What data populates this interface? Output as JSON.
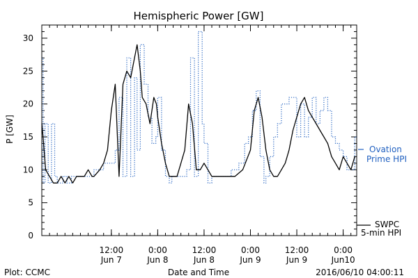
{
  "chart_data": {
    "type": "line",
    "title": "Hemispheric Power [GW]",
    "ylabel": "P [GW]",
    "xlabel": "Date and Time",
    "ylim": [
      0,
      32
    ],
    "yticks": [
      0,
      5,
      10,
      15,
      20,
      25,
      30
    ],
    "xlim": [
      "2016-06-06 18:00",
      "2016-06-10 03:30"
    ],
    "xticks": [
      {
        "t": "2016-06-07 12:00",
        "line1": "12:00",
        "line2": "Jun 7"
      },
      {
        "t": "2016-06-08 00:00",
        "line1": "0:00",
        "line2": "Jun 8"
      },
      {
        "t": "2016-06-08 12:00",
        "line1": "12:00",
        "line2": "Jun 8"
      },
      {
        "t": "2016-06-09 00:00",
        "line1": "0:00",
        "line2": "Jun 9"
      },
      {
        "t": "2016-06-09 12:00",
        "line1": "12:00",
        "line2": "Jun 9"
      },
      {
        "t": "2016-06-10 00:00",
        "line1": "0:00",
        "line2": "Jun10"
      }
    ],
    "series": [
      {
        "name": "Ovation Prime HPI",
        "style": "dotted",
        "color": "#2060c0",
        "x": [
          "2016-06-06 18:00",
          "2016-06-06 18:20",
          "2016-06-06 18:50",
          "2016-06-06 19:40",
          "2016-06-06 20:30",
          "2016-06-06 21:20",
          "2016-06-06 22:00",
          "2016-06-06 23:10",
          "2016-06-06 23:30",
          "2016-06-07 00:30",
          "2016-06-07 01:40",
          "2016-06-07 03:00",
          "2016-06-07 05:00",
          "2016-06-07 07:30",
          "2016-06-07 10:00",
          "2016-06-07 13:00",
          "2016-06-07 14:00",
          "2016-06-07 15:00",
          "2016-06-07 16:00",
          "2016-06-07 17:00",
          "2016-06-07 18:00",
          "2016-06-07 18:40",
          "2016-06-07 19:30",
          "2016-06-07 20:30",
          "2016-06-07 21:30",
          "2016-06-07 22:30",
          "2016-06-07 23:30",
          "2016-06-08 00:00",
          "2016-06-08 01:00",
          "2016-06-08 02:00",
          "2016-06-08 03:00",
          "2016-06-08 03:40",
          "2016-06-08 04:30",
          "2016-06-08 05:30",
          "2016-06-08 06:30",
          "2016-06-08 07:30",
          "2016-06-08 08:30",
          "2016-06-08 09:30",
          "2016-06-08 10:30",
          "2016-06-08 11:30",
          "2016-06-08 12:00",
          "2016-06-08 13:00",
          "2016-06-08 14:00",
          "2016-06-08 15:00",
          "2016-06-08 16:00",
          "2016-06-08 17:00",
          "2016-06-08 19:00",
          "2016-06-08 21:00",
          "2016-06-08 22:30",
          "2016-06-08 23:30",
          "2016-06-09 00:30",
          "2016-06-09 01:30",
          "2016-06-09 02:30",
          "2016-06-09 03:30",
          "2016-06-09 04:00",
          "2016-06-09 05:00",
          "2016-06-09 06:00",
          "2016-06-09 07:00",
          "2016-06-09 08:00",
          "2016-06-09 10:00",
          "2016-06-09 11:30",
          "2016-06-09 12:00",
          "2016-06-09 13:00",
          "2016-06-09 14:00",
          "2016-06-09 15:00",
          "2016-06-09 16:00",
          "2016-06-09 17:00",
          "2016-06-09 18:00",
          "2016-06-09 19:00",
          "2016-06-09 20:00",
          "2016-06-09 21:00",
          "2016-06-09 22:00",
          "2016-06-09 23:00",
          "2016-06-10 00:00",
          "2016-06-10 01:00",
          "2016-06-10 02:00",
          "2016-06-10 03:00"
        ],
        "y": [
          27,
          8,
          17,
          8,
          17,
          9,
          8,
          8,
          9,
          8,
          9,
          9,
          9,
          10,
          11,
          13,
          21,
          9,
          27,
          9,
          24,
          13,
          29,
          23,
          18,
          14,
          15,
          21,
          13,
          9,
          8,
          9,
          9,
          9,
          9,
          10,
          27,
          9,
          31,
          17,
          14,
          8,
          9,
          9,
          9,
          9,
          10,
          11,
          14,
          15,
          19,
          22,
          12,
          8,
          9,
          12,
          15,
          17,
          20,
          21,
          21,
          15,
          20,
          15,
          18,
          21,
          17,
          19,
          21,
          19,
          15,
          14,
          13,
          12,
          10,
          10,
          15
        ]
      },
      {
        "name": "SWPC 5-min HPI",
        "style": "solid",
        "color": "#000000",
        "x": [
          "2016-06-06 18:00",
          "2016-06-06 18:20",
          "2016-06-06 19:00",
          "2016-06-06 20:00",
          "2016-06-06 21:00",
          "2016-06-06 22:00",
          "2016-06-06 23:00",
          "2016-06-07 00:00",
          "2016-06-07 01:00",
          "2016-06-07 02:00",
          "2016-06-07 03:00",
          "2016-06-07 04:00",
          "2016-06-07 05:00",
          "2016-06-07 06:00",
          "2016-06-07 07:00",
          "2016-06-07 07:30",
          "2016-06-07 09:00",
          "2016-06-07 10:00",
          "2016-06-07 11:00",
          "2016-06-07 12:00",
          "2016-06-07 13:00",
          "2016-06-07 14:00",
          "2016-06-07 15:00",
          "2016-06-07 16:00",
          "2016-06-07 17:00",
          "2016-06-07 18:00",
          "2016-06-07 18:40",
          "2016-06-07 19:30",
          "2016-06-07 20:00",
          "2016-06-07 21:00",
          "2016-06-07 22:00",
          "2016-06-07 23:00",
          "2016-06-07 23:40",
          "2016-06-08 00:00",
          "2016-06-08 01:00",
          "2016-06-08 02:00",
          "2016-06-08 03:00",
          "2016-06-08 04:00",
          "2016-06-08 05:00",
          "2016-06-08 06:00",
          "2016-06-08 07:00",
          "2016-06-08 08:00",
          "2016-06-08 09:00",
          "2016-06-08 10:00",
          "2016-06-08 11:00",
          "2016-06-08 12:00",
          "2016-06-08 13:00",
          "2016-06-08 14:00",
          "2016-06-08 15:00",
          "2016-06-08 16:00",
          "2016-06-08 17:00",
          "2016-06-08 18:00",
          "2016-06-08 20:00",
          "2016-06-08 22:00",
          "2016-06-09 00:00",
          "2016-06-09 01:00",
          "2016-06-09 02:00",
          "2016-06-09 03:00",
          "2016-06-09 04:00",
          "2016-06-09 05:00",
          "2016-06-09 06:00",
          "2016-06-09 07:00",
          "2016-06-09 08:00",
          "2016-06-09 09:00",
          "2016-06-09 10:00",
          "2016-06-09 11:00",
          "2016-06-09 12:00",
          "2016-06-09 13:00",
          "2016-06-09 14:00",
          "2016-06-09 15:00",
          "2016-06-09 16:00",
          "2016-06-09 17:00",
          "2016-06-09 18:00",
          "2016-06-09 19:00",
          "2016-06-09 20:00",
          "2016-06-09 21:00",
          "2016-06-09 22:00",
          "2016-06-09 23:00",
          "2016-06-10 00:00",
          "2016-06-10 01:00",
          "2016-06-10 02:00",
          "2016-06-10 03:00"
        ],
        "y": [
          17,
          15,
          10,
          9,
          8,
          8,
          9,
          8,
          9,
          8,
          9,
          9,
          9,
          10,
          9,
          9,
          10,
          11,
          13,
          19,
          23,
          9,
          23,
          25,
          24,
          27,
          29,
          25,
          21,
          20,
          17,
          21,
          20,
          18,
          14,
          11,
          9,
          9,
          9,
          11,
          13,
          20,
          17,
          10,
          10,
          11,
          10,
          9,
          9,
          9,
          9,
          9,
          9,
          10,
          13,
          19,
          21,
          18,
          13,
          10,
          9,
          9,
          10,
          11,
          13,
          16,
          18,
          20,
          21,
          19,
          18,
          17,
          16,
          15,
          14,
          12,
          11,
          10,
          12,
          11,
          10,
          12
        ]
      }
    ],
    "legend": [
      {
        "name": "Ovation",
        "line2": "Prime HPI",
        "style": "dotted",
        "color": "#2060c0",
        "position": "right-middle"
      },
      {
        "name": "SWPC",
        "line2": "5-min HPI",
        "style": "solid",
        "color": "#000000",
        "position": "right-bottom"
      }
    ]
  },
  "footer": {
    "left": "Plot: CCMC",
    "center": "Date and Time",
    "right": "2016/06/10 04:00:11"
  }
}
